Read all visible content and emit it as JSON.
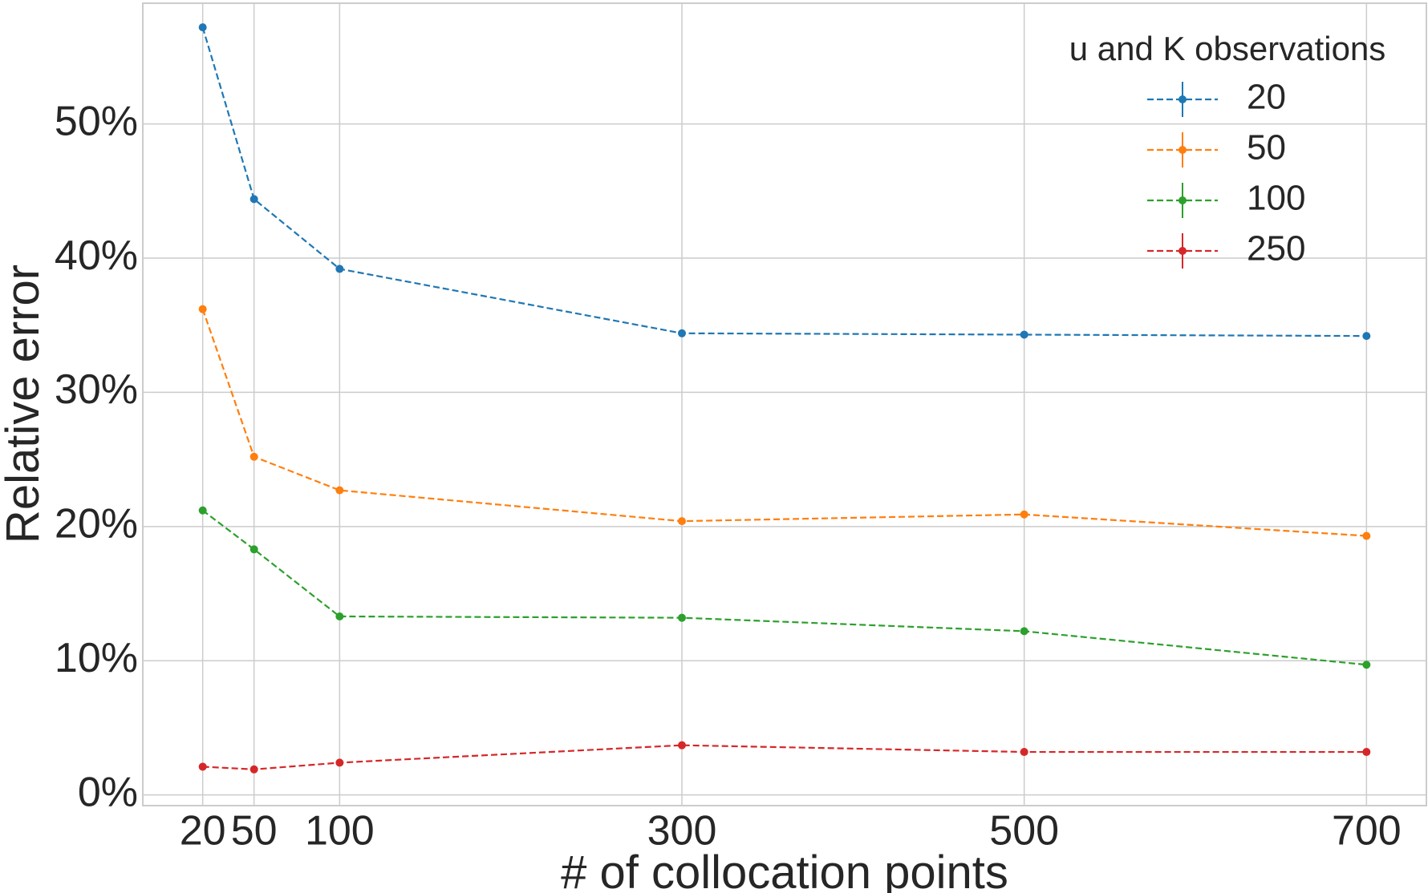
{
  "chart_data": {
    "type": "line",
    "title": "",
    "xlabel": "# of collocation points",
    "ylabel": "Relative error",
    "x": [
      20,
      50,
      100,
      300,
      500,
      700
    ],
    "x_ticks": [
      "20",
      "50",
      "100",
      "300",
      "500",
      "700"
    ],
    "xlim": [
      -15,
      735
    ],
    "y_ticks": [
      "0%",
      "10%",
      "20%",
      "30%",
      "40%",
      "50%"
    ],
    "y_tick_values": [
      0,
      10,
      20,
      30,
      40,
      50
    ],
    "ylim": [
      -0.8,
      59
    ],
    "grid": true,
    "line_style": "dashed",
    "marker": "circle",
    "legend": {
      "title": "u and K observations",
      "placement": "top-right"
    },
    "series": [
      {
        "name": "20",
        "color": "#1f77b4",
        "values": [
          57.2,
          44.4,
          39.2,
          34.4,
          34.3,
          34.2
        ]
      },
      {
        "name": "50",
        "color": "#ff7f0e",
        "values": [
          36.2,
          25.2,
          22.7,
          20.4,
          20.9,
          19.3
        ]
      },
      {
        "name": "100",
        "color": "#2ca02c",
        "values": [
          21.2,
          18.3,
          13.3,
          13.2,
          12.2,
          9.7
        ]
      },
      {
        "name": "250",
        "color": "#d62728",
        "values": [
          2.1,
          1.9,
          2.4,
          3.7,
          3.2,
          3.2
        ]
      }
    ]
  }
}
